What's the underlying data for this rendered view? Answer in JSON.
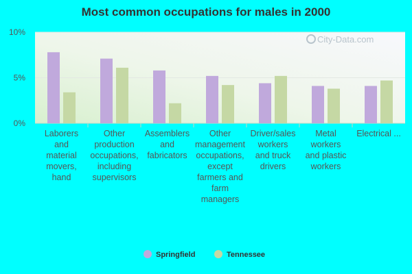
{
  "chart_data": {
    "type": "bar",
    "title": "Most common occupations for males in 2000",
    "categories": [
      [
        "Laborers",
        "and",
        "material",
        "movers,",
        "hand"
      ],
      [
        "Other",
        "production",
        "occupations,",
        "including",
        "supervisors"
      ],
      [
        "Assemblers",
        "and",
        "fabricators"
      ],
      [
        "Other",
        "management",
        "occupations,",
        "except",
        "farmers and",
        "farm",
        "managers"
      ],
      [
        "Driver/sales",
        "workers",
        "and truck",
        "drivers"
      ],
      [
        "Metal",
        "workers",
        "and plastic",
        "workers"
      ],
      [
        "Electrical ..."
      ]
    ],
    "series": [
      {
        "name": "Springfield",
        "color": "#c0a9dc",
        "values": [
          7.8,
          7.1,
          5.8,
          5.2,
          4.4,
          4.1,
          4.1
        ]
      },
      {
        "name": "Tennessee",
        "color": "#c5d8a4",
        "values": [
          3.4,
          6.1,
          2.2,
          4.2,
          5.2,
          3.8,
          4.7
        ]
      }
    ],
    "y_ticks": [
      "0%",
      "5%",
      "10%"
    ],
    "ylim": [
      0,
      10
    ],
    "grid": true,
    "legend": "bottom-center",
    "watermark": "City-Data.com"
  }
}
